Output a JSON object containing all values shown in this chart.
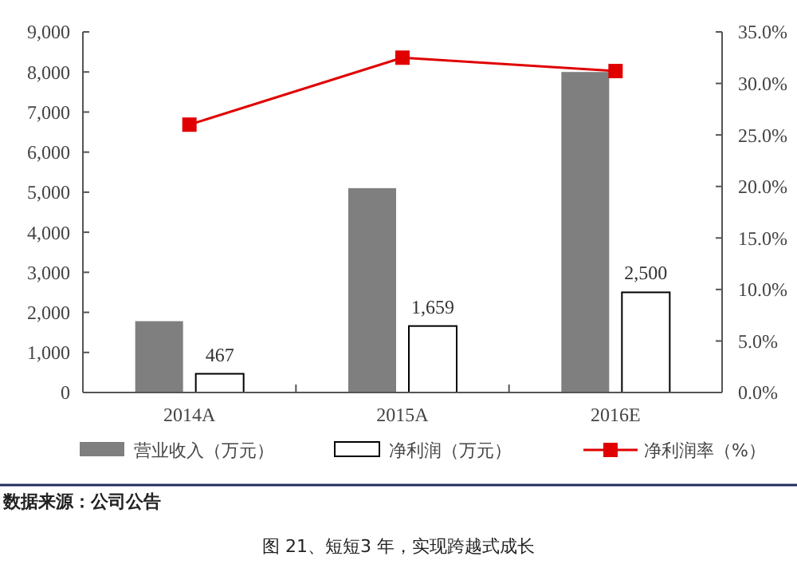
{
  "chart_data": {
    "type": "bar",
    "title": "图 21、短短3 年，实现跨越式成长",
    "categories": [
      "2014A",
      "2015A",
      "2016E"
    ],
    "series": [
      {
        "name": "营业收入（万元）",
        "color": "#7f7f7f",
        "values": [
          1780,
          5100,
          8000
        ]
      },
      {
        "name": "净利润（万元）",
        "color": "#ffffff",
        "values": [
          467,
          1659,
          2500
        ],
        "value_labels": [
          "467",
          "1,659",
          "2,500"
        ]
      },
      {
        "name": "净利润率（%）",
        "type": "line",
        "axis": "y2",
        "color": "#e00000",
        "marker": "square",
        "values": [
          26.0,
          32.5,
          31.2
        ]
      }
    ],
    "ylim": [
      0,
      9000
    ],
    "yticks": [
      {
        "value": 0,
        "label": "0"
      },
      {
        "value": 1000,
        "label": "1,000"
      },
      {
        "value": 2000,
        "label": "2,000"
      },
      {
        "value": 3000,
        "label": "3,000"
      },
      {
        "value": 4000,
        "label": "4,000"
      },
      {
        "value": 5000,
        "label": "5,000"
      },
      {
        "value": 6000,
        "label": "6,000"
      },
      {
        "value": 7000,
        "label": "7,000"
      },
      {
        "value": 8000,
        "label": "8,000"
      },
      {
        "value": 9000,
        "label": "9,000"
      }
    ],
    "y2lim": [
      0,
      35
    ],
    "y2ticks": [
      {
        "value": 0,
        "label": "0.0%"
      },
      {
        "value": 5,
        "label": "5.0%"
      },
      {
        "value": 10,
        "label": "10.0%"
      },
      {
        "value": 15,
        "label": "15.0%"
      },
      {
        "value": 20,
        "label": "20.0%"
      },
      {
        "value": 25,
        "label": "25.0%"
      },
      {
        "value": 30,
        "label": "30.0%"
      },
      {
        "value": 35,
        "label": "35.0%"
      }
    ],
    "grid": false,
    "legend": "bottom",
    "annotations": [
      "数据来源：公司公告"
    ]
  }
}
